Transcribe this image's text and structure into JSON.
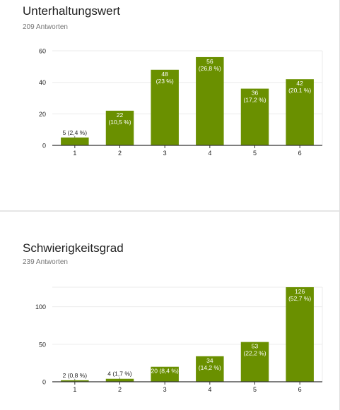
{
  "questions": [
    {
      "title": "Unterhaltungswert",
      "responses": "209 Antworten"
    },
    {
      "title": "Schwierigkeitsgrad",
      "responses": "239 Antworten"
    }
  ],
  "colors": {
    "bar": "#6a9000",
    "grid": "#ebebeb",
    "axis": "#333333",
    "label_outside": "#212121",
    "label_inside": "#ffffff"
  },
  "chart_data": [
    {
      "type": "bar",
      "title": "Unterhaltungswert",
      "categories": [
        "1",
        "2",
        "3",
        "4",
        "5",
        "6"
      ],
      "values": [
        5,
        22,
        48,
        56,
        36,
        42
      ],
      "labels": [
        "5 (2,4 %)",
        "22\n(10,5 %)",
        "48\n(23 %)",
        "56\n(26,8 %)",
        "36\n(17,2 %)",
        "42\n(20,1 %)"
      ],
      "yticks": [
        0,
        20,
        40,
        60
      ],
      "ylim": [
        0,
        60
      ],
      "grid": true
    },
    {
      "type": "bar",
      "title": "Schwierigkeitsgrad",
      "categories": [
        "1",
        "2",
        "3",
        "4",
        "5",
        "6"
      ],
      "values": [
        2,
        4,
        20,
        34,
        53,
        126
      ],
      "labels": [
        "2 (0,8 %)",
        "4 (1,7 %)",
        "20 (8,4 %)",
        "34\n(14,2 %)",
        "53\n(22,2 %)",
        "126\n(52,7 %)"
      ],
      "yticks": [
        0,
        50,
        100
      ],
      "ylim": [
        0,
        126
      ],
      "grid": true
    }
  ]
}
